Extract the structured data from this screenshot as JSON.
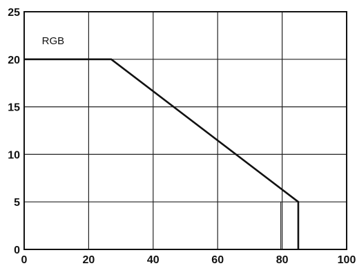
{
  "chart_data": {
    "type": "line",
    "series": [
      {
        "name": "RGB",
        "x": [
          0,
          27,
          85,
          85
        ],
        "y": [
          20,
          20,
          5,
          0
        ]
      }
    ],
    "xlim": [
      0,
      100
    ],
    "ylim": [
      0,
      25
    ],
    "x_ticks": [
      0,
      20,
      40,
      60,
      80,
      100
    ],
    "y_ticks": [
      0,
      5,
      10,
      15,
      20,
      25
    ],
    "x_tick_labels": [
      "0",
      "20",
      "40",
      "60",
      "80",
      "100"
    ],
    "y_tick_labels": [
      "0",
      "5",
      "10",
      "15",
      "20",
      "25"
    ],
    "grid": true,
    "extra_vertical_gridline_x": 80,
    "annotation": "RGB",
    "title": "",
    "xlabel": "",
    "ylabel": "",
    "colors": {
      "line": "#111111",
      "grid": "#222222",
      "frame": "#111111"
    }
  }
}
